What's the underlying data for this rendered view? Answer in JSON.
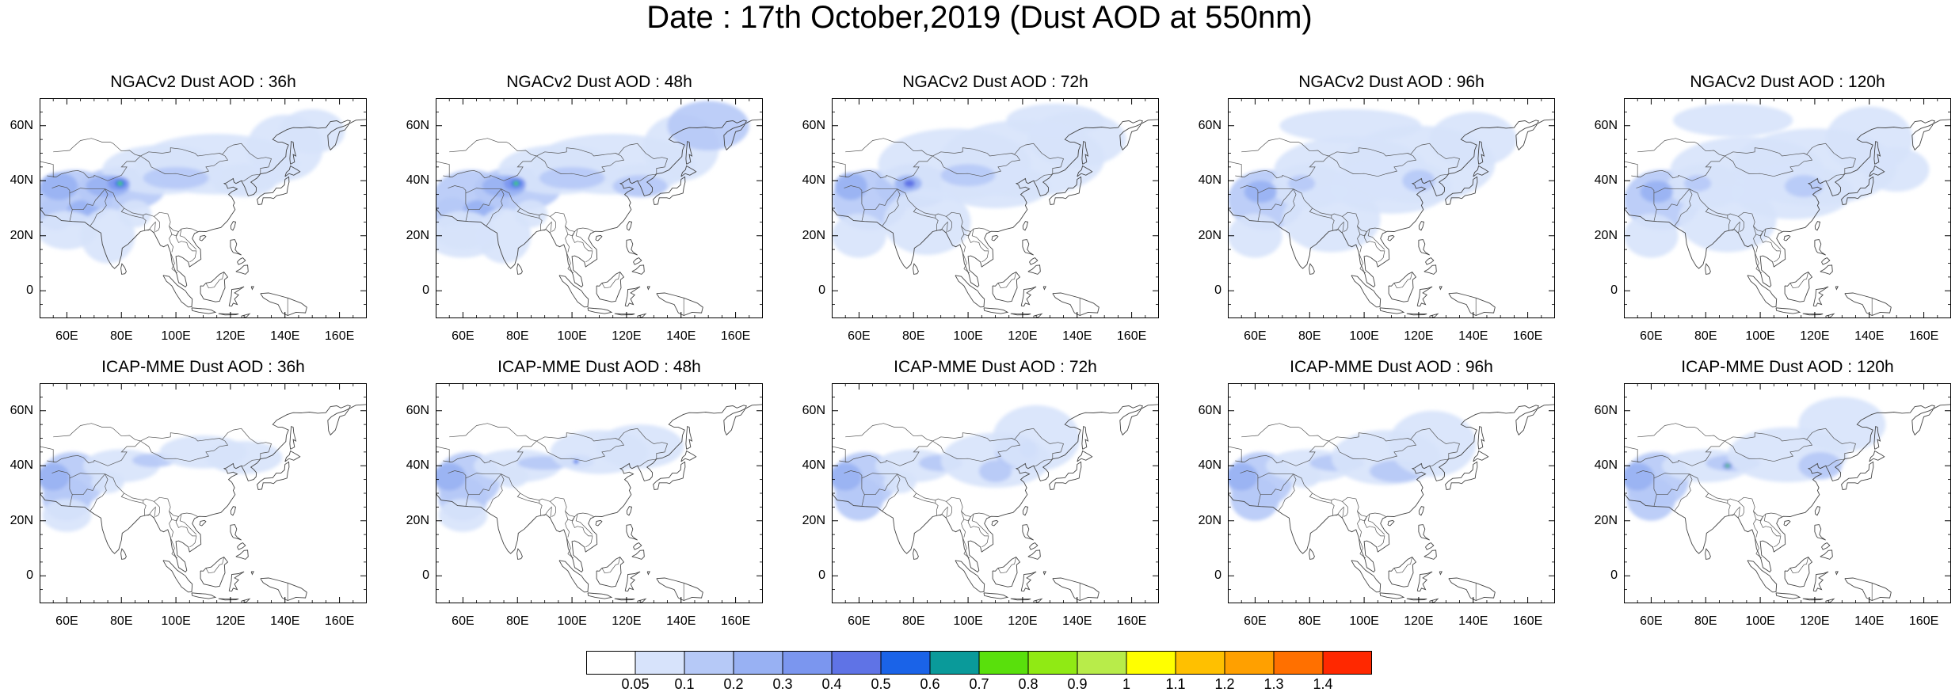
{
  "title": "Date : 17th October,2019 (Dust AOD at 550nm)",
  "map_extent": {
    "lon": [
      50,
      170
    ],
    "lat": [
      -10,
      70
    ]
  },
  "x_tick_labels": [
    "60E",
    "80E",
    "100E",
    "120E",
    "140E",
    "160E"
  ],
  "y_tick_labels": [
    "60N",
    "40N",
    "20N",
    "0"
  ],
  "panels": [
    {
      "title": "NGACv2 Dust AOD : 36h"
    },
    {
      "title": "NGACv2 Dust AOD : 48h"
    },
    {
      "title": "NGACv2 Dust AOD : 72h"
    },
    {
      "title": "NGACv2 Dust AOD : 96h"
    },
    {
      "title": "NGACv2 Dust AOD : 120h"
    },
    {
      "title": "ICAP-MME Dust AOD : 36h"
    },
    {
      "title": "ICAP-MME Dust AOD : 48h"
    },
    {
      "title": "ICAP-MME Dust AOD : 72h"
    },
    {
      "title": "ICAP-MME Dust AOD : 96h"
    },
    {
      "title": "ICAP-MME Dust AOD : 120h"
    }
  ],
  "colorbar": {
    "labels": [
      "0.05",
      "0.1",
      "0.2",
      "0.3",
      "0.4",
      "0.5",
      "0.6",
      "0.7",
      "0.8",
      "0.9",
      "1",
      "1.1",
      "1.2",
      "1.3",
      "1.4"
    ],
    "colors": [
      "#ffffff",
      "#d7e3fb",
      "#b6c9f7",
      "#98b1f3",
      "#7b96ef",
      "#5f73e6",
      "#1a63e8",
      "#0a9a9a",
      "#59e00c",
      "#90ea14",
      "#b8ec4a",
      "#ffff00",
      "#ffc000",
      "#ffa000",
      "#ff7000",
      "#ff2800"
    ]
  }
}
